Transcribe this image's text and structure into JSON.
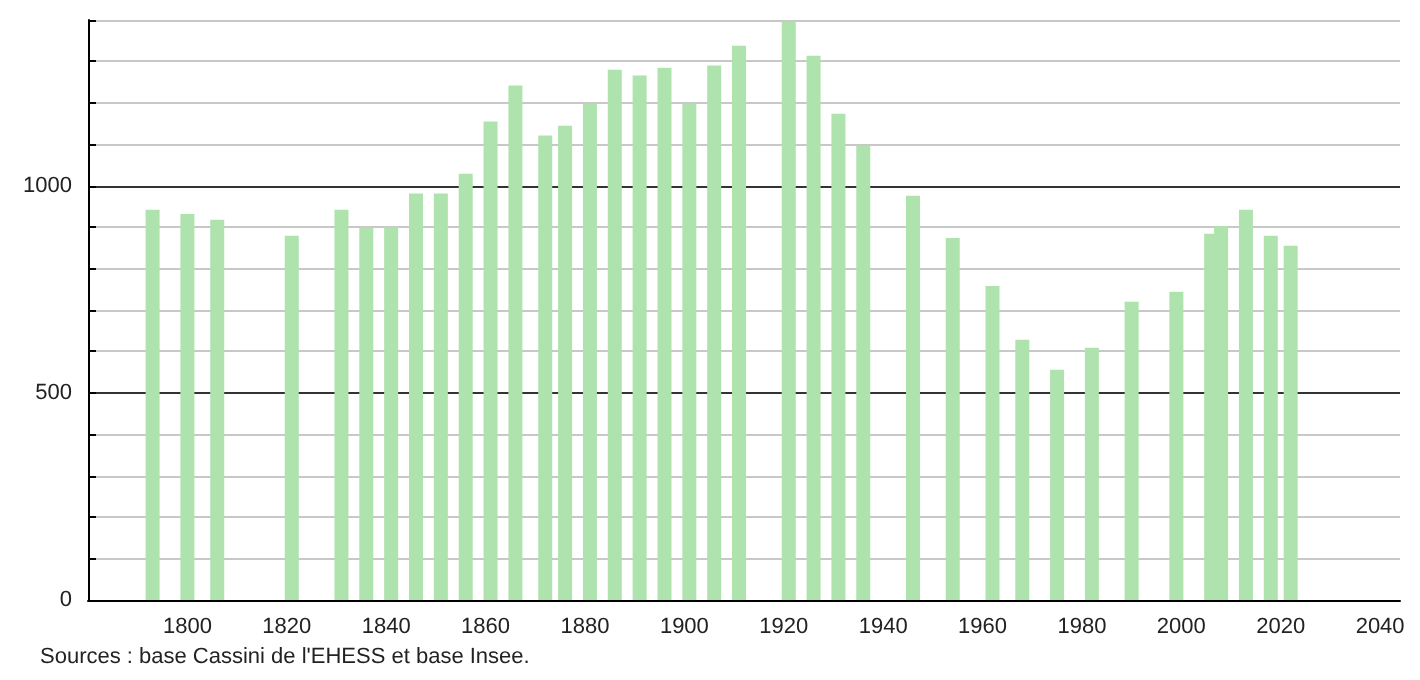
{
  "chart_data": {
    "type": "bar",
    "x": [
      1793,
      1800,
      1806,
      1821,
      1831,
      1836,
      1841,
      1846,
      1851,
      1856,
      1861,
      1866,
      1872,
      1876,
      1881,
      1886,
      1891,
      1896,
      1901,
      1906,
      1911,
      1921,
      1926,
      1931,
      1936,
      1946,
      1954,
      1962,
      1968,
      1975,
      1982,
      1990,
      1999,
      2006,
      2008,
      2013,
      2018,
      2022
    ],
    "values": [
      942,
      932,
      918,
      879,
      942,
      899,
      899,
      981,
      981,
      1029,
      1155,
      1242,
      1121,
      1145,
      1198,
      1280,
      1266,
      1285,
      1198,
      1290,
      1338,
      1396,
      1314,
      1174,
      1097,
      976,
      874,
      758,
      628,
      556,
      609,
      720,
      744,
      884,
      903,
      942,
      879,
      855
    ],
    "color": "#aee3ae",
    "xlim": [
      1780,
      2044
    ],
    "xticks": [
      1800,
      1820,
      1840,
      1860,
      1880,
      1900,
      1920,
      1940,
      1960,
      1980,
      2000,
      2020,
      2040
    ],
    "ylim": [
      0,
      1400
    ],
    "yticks": [
      0,
      {
        "value": 100,
        "label": null
      },
      {
        "value": 200,
        "label": null
      },
      {
        "value": 300,
        "label": null
      },
      {
        "value": 400,
        "label": null
      },
      500,
      {
        "value": 600,
        "label": null
      },
      {
        "value": 700,
        "label": null
      },
      {
        "value": 800,
        "label": null
      },
      {
        "value": 900,
        "label": null
      },
      1000,
      {
        "value": 1100,
        "label": null
      },
      {
        "value": 1200,
        "label": null
      },
      {
        "value": 1300,
        "label": null
      },
      {
        "value": 1400,
        "label": null
      }
    ],
    "grid": "y",
    "annotations": [
      "Sources : base Cassini de l'EHESS et base Insee."
    ]
  }
}
